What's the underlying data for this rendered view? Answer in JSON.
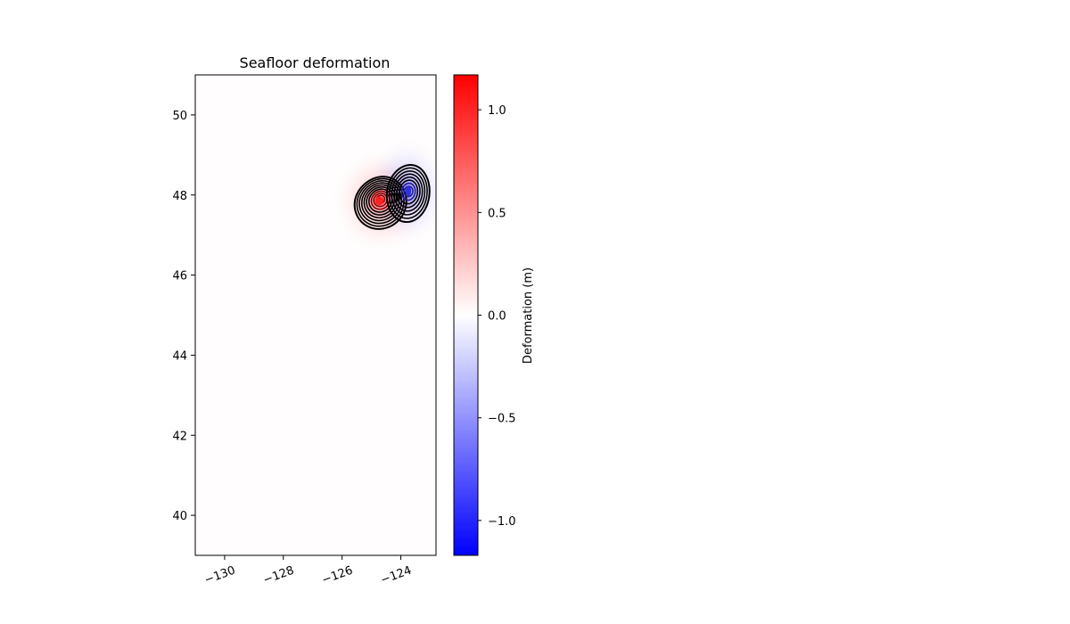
{
  "chart_data": {
    "type": "heatmap",
    "title": "Seafloor deformation",
    "xlabel": "",
    "ylabel": "",
    "xlim": [
      -131.0,
      -122.8
    ],
    "ylim": [
      39.0,
      51.0
    ],
    "x_ticks": [
      -130,
      -128,
      -126,
      -124
    ],
    "x_tick_labels": [
      "−130",
      "−128",
      "−126",
      "−124"
    ],
    "y_ticks": [
      40,
      42,
      44,
      46,
      48,
      50
    ],
    "y_tick_labels": [
      "40",
      "42",
      "44",
      "46",
      "48",
      "50"
    ],
    "grid": false,
    "colormap": "bwr",
    "colormap_colors": [
      "#0000ff",
      "#ffffff",
      "#ff0000"
    ],
    "color_range": [
      -1.17,
      1.17
    ],
    "colorbar": {
      "label": "Deformation (m)",
      "ticks": [
        -1.0,
        -0.5,
        0.0,
        0.5,
        1.0
      ],
      "tick_labels": [
        "−1.0",
        "−0.5",
        "0.0",
        "0.5",
        "1.0"
      ]
    },
    "contour_color": "#000000",
    "uplift_lobe": {
      "center_lon": -124.7,
      "center_lat": 47.9,
      "peak_m": 1.17
    },
    "subsidence_lobe": {
      "center_lon": -123.8,
      "center_lat": 48.1,
      "peak_m": -1.0
    }
  }
}
